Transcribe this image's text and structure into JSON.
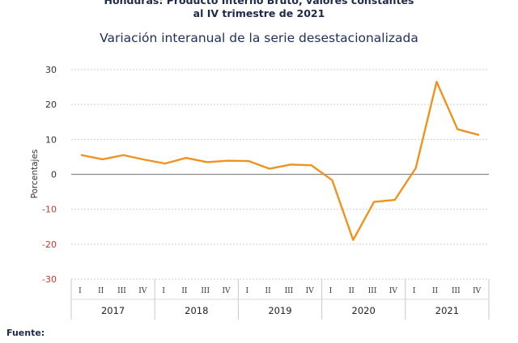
{
  "header": {
    "title_line1": "Honduras: Producto Interno Bruto, valores constantes",
    "title_line2": "al IV trimestre de 2021",
    "subtitle": "Variación interanual de la serie desestacionalizada"
  },
  "footer": {
    "source_label": "Fuente:"
  },
  "chart_data": {
    "type": "line",
    "ylabel": "Porcentajes",
    "ylim": [
      -30,
      30
    ],
    "yticks": [
      30,
      20,
      10,
      0,
      -10,
      -20,
      -30
    ],
    "grid": true,
    "x_quarters": [
      "I",
      "II",
      "III",
      "IV",
      "I",
      "II",
      "III",
      "IV",
      "I",
      "II",
      "III",
      "IV",
      "I",
      "II",
      "III",
      "IV",
      "I",
      "II",
      "III",
      "IV"
    ],
    "years": [
      "2017",
      "2018",
      "2019",
      "2020",
      "2021"
    ],
    "series": [
      {
        "color": "#f0921e",
        "values": [
          5.5,
          4.3,
          5.5,
          4.2,
          3.1,
          4.7,
          3.5,
          3.9,
          3.8,
          1.6,
          2.8,
          2.6,
          -1.7,
          -18.8,
          -7.9,
          -7.3,
          1.8,
          26.5,
          12.9,
          11.3
        ]
      }
    ]
  }
}
